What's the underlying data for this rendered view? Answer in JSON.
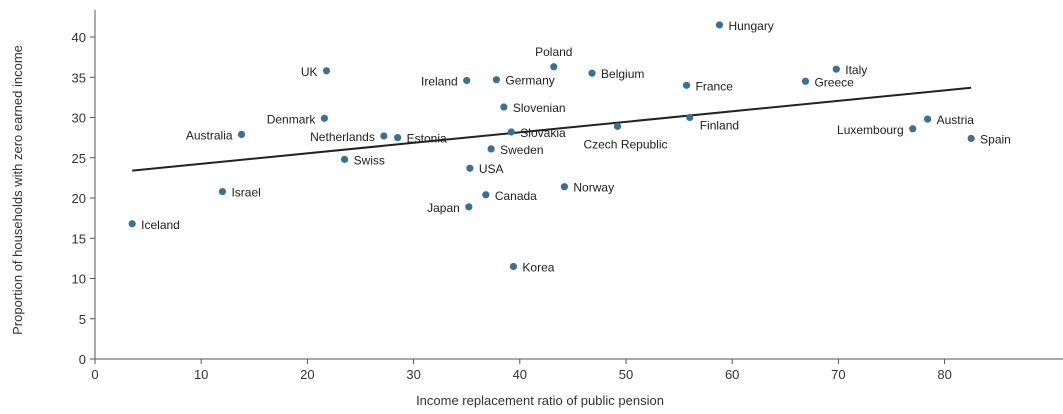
{
  "chart_data": {
    "type": "scatter",
    "title": "",
    "xlabel": "Income replacement ratio of public pension",
    "ylabel": "Proportion of households with zero earned income",
    "xlim": [
      0,
      90
    ],
    "ylim": [
      0,
      45
    ],
    "x_ticks": [
      0,
      10,
      20,
      30,
      40,
      50,
      60,
      70,
      80
    ],
    "y_ticks": [
      0,
      5,
      10,
      15,
      20,
      25,
      30,
      35,
      40
    ],
    "grid": false,
    "point_color": "#3a7092",
    "trend_color": "#222222",
    "points": [
      {
        "label": "Iceland",
        "x": 3.5,
        "y": 16.8,
        "pos": "right"
      },
      {
        "label": "Israel",
        "x": 12.0,
        "y": 20.8,
        "pos": "right"
      },
      {
        "label": "Australia",
        "x": 13.8,
        "y": 27.9,
        "pos": "left"
      },
      {
        "label": "UK",
        "x": 21.8,
        "y": 35.8,
        "pos": "left"
      },
      {
        "label": "Denmark",
        "x": 21.6,
        "y": 29.9,
        "pos": "left"
      },
      {
        "label": "Swiss",
        "x": 23.5,
        "y": 24.8,
        "pos": "right"
      },
      {
        "label": "Netherlands",
        "x": 27.2,
        "y": 27.7,
        "pos": "left"
      },
      {
        "label": "Estonia",
        "x": 28.5,
        "y": 27.5,
        "pos": "right"
      },
      {
        "label": "Ireland",
        "x": 35.0,
        "y": 34.6,
        "pos": "left"
      },
      {
        "label": "Germany",
        "x": 37.8,
        "y": 34.7,
        "pos": "right"
      },
      {
        "label": "USA",
        "x": 35.3,
        "y": 23.7,
        "pos": "right"
      },
      {
        "label": "Japan",
        "x": 35.2,
        "y": 18.9,
        "pos": "left"
      },
      {
        "label": "Canada",
        "x": 36.8,
        "y": 20.4,
        "pos": "right"
      },
      {
        "label": "Slovenian",
        "x": 38.5,
        "y": 31.3,
        "pos": "right"
      },
      {
        "label": "Slovakia",
        "x": 39.2,
        "y": 28.2,
        "pos": "right"
      },
      {
        "label": "Sweden",
        "x": 37.3,
        "y": 26.1,
        "pos": "right"
      },
      {
        "label": "Korea",
        "x": 39.4,
        "y": 11.5,
        "pos": "right"
      },
      {
        "label": "Poland",
        "x": 43.2,
        "y": 36.3,
        "pos": "above"
      },
      {
        "label": "Norway",
        "x": 44.2,
        "y": 21.4,
        "pos": "right"
      },
      {
        "label": "Belgium",
        "x": 46.8,
        "y": 35.5,
        "pos": "right"
      },
      {
        "label": "Czech Republic",
        "x": 49.2,
        "y": 28.9,
        "pos": "below"
      },
      {
        "label": "France",
        "x": 55.7,
        "y": 34.0,
        "pos": "right"
      },
      {
        "label": "Finland",
        "x": 56.0,
        "y": 30.0,
        "pos": "right-low"
      },
      {
        "label": "Hungary",
        "x": 58.8,
        "y": 41.5,
        "pos": "right"
      },
      {
        "label": "Greece",
        "x": 66.9,
        "y": 34.5,
        "pos": "right"
      },
      {
        "label": "Italy",
        "x": 69.8,
        "y": 36.0,
        "pos": "right"
      },
      {
        "label": "Luxembourg",
        "x": 77.0,
        "y": 28.6,
        "pos": "left"
      },
      {
        "label": "Austria",
        "x": 78.4,
        "y": 29.8,
        "pos": "right"
      },
      {
        "label": "Spain",
        "x": 82.5,
        "y": 27.4,
        "pos": "right"
      }
    ],
    "trendline": {
      "x": [
        3.5,
        82.5
      ],
      "y": [
        23.4,
        33.7
      ]
    }
  }
}
